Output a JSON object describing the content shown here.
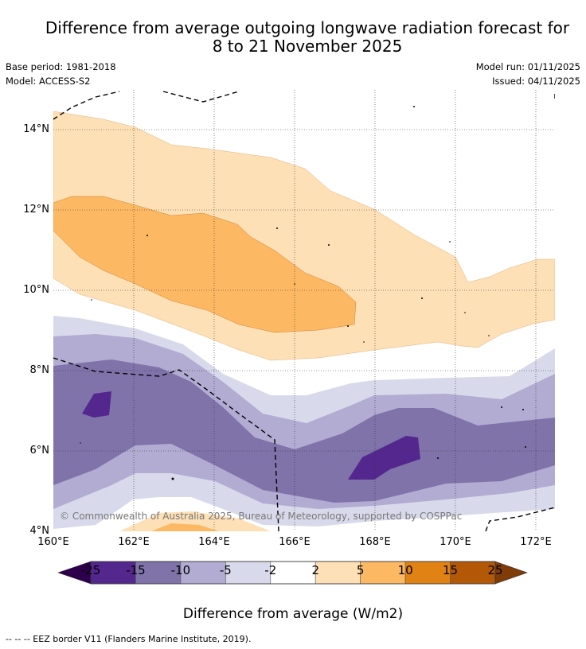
{
  "title_line1": "Difference from average outgoing longwave radiation forecast for",
  "title_line2": "8 to 21 November 2025",
  "base_period": "Base period: 1981-2018",
  "model": "Model: ACCESS-S2",
  "model_run": "Model run: 01/11/2025",
  "issued": "Issued: 04/11/2025",
  "lat_labels": [
    "14°N",
    "12°N",
    "10°N",
    "8°N",
    "6°N",
    "4°N"
  ],
  "lon_labels": [
    "160°E",
    "162°E",
    "164°E",
    "166°E",
    "168°E",
    "170°E",
    "172°E"
  ],
  "copyright": "© Commonwealth of Australia 2025, Bureau of Meteorology, supported by COSPPac",
  "colorbar": {
    "ticks": [
      "-25",
      "-15",
      "-10",
      "-5",
      "-2",
      "2",
      "5",
      "10",
      "15",
      "25"
    ],
    "colors": [
      "#54278f",
      "#7f73aa",
      "#b2abd2",
      "#d8daeb",
      "#ffffff",
      "#fee0b6",
      "#fdb863",
      "#e08214",
      "#b35806"
    ],
    "under_color": "#2d004b",
    "over_color": "#7f3b08",
    "label": "Difference from average (W/m2)"
  },
  "footer": "--  --  -- EEZ border V11 (Flanders Marine Institute, 2019)."
}
